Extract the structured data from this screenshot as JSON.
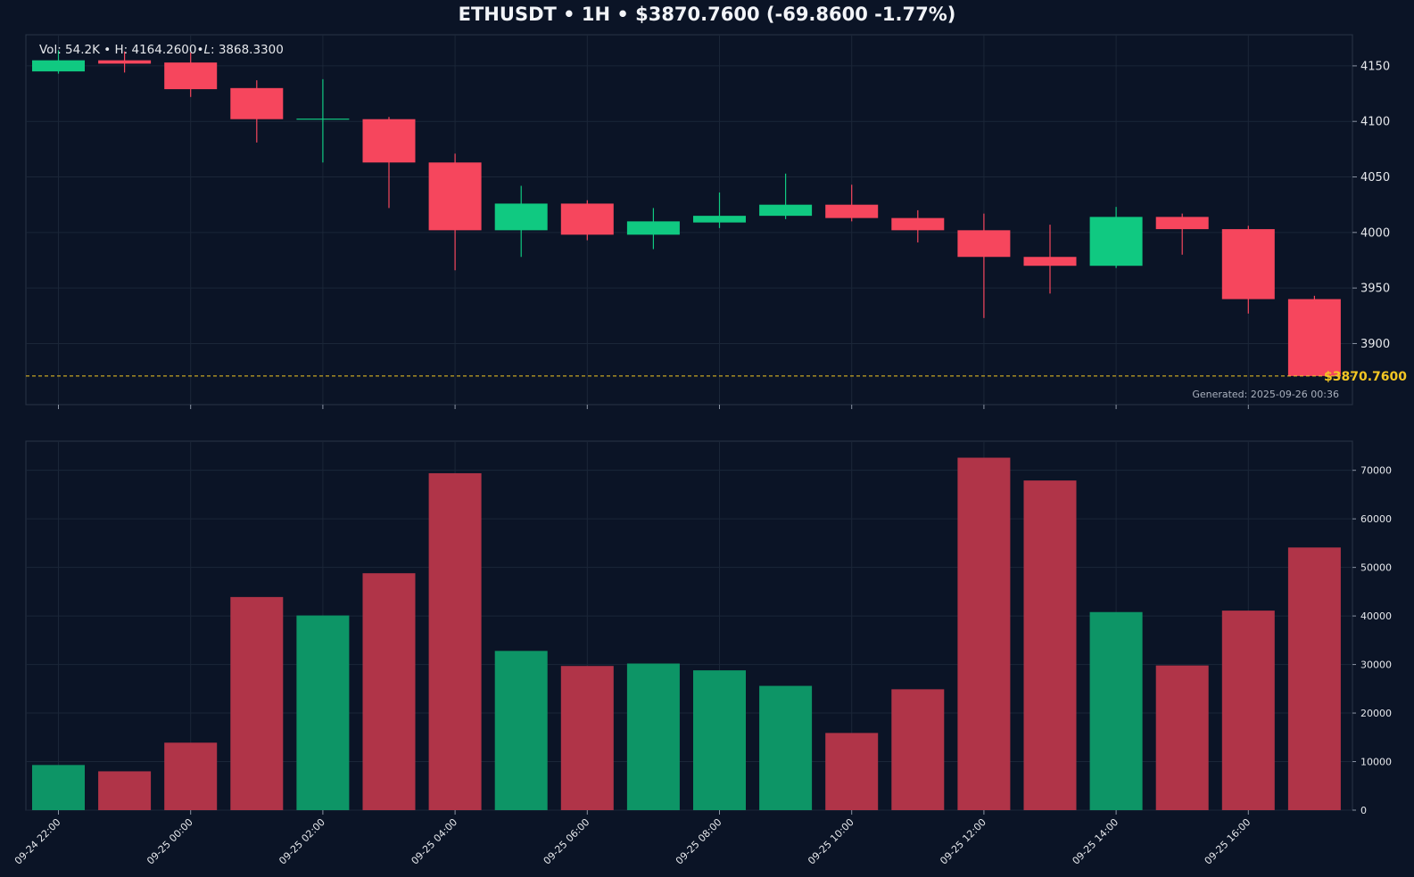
{
  "title": "ETHUSDT • 1H • $3870.7600 (-69.8600 -1.77%)",
  "info_text": "Vol: 54.2K • H: 4164.2600•$L$: 3868.3300",
  "info": {
    "vol": "Vol: 54.2K • H: 4164.2600•",
    "low_symbol": "L",
    "low_value": ": 3868.3300"
  },
  "last_price_label": "$3870.7600",
  "generated_label": "Generated: 2025-09-26 00:36",
  "colors": {
    "background": "#0b1426",
    "up": "#10c981",
    "down": "#f6465d",
    "up_volume": "#0d9566",
    "down_volume": "#b03448",
    "last_price_line": "#f3c623",
    "text": "#e6e8ec",
    "grid": "#1b2638"
  },
  "chart_data": [
    {
      "type": "candlestick",
      "title": "ETHUSDT • 1H • $3870.7600 (-69.8600 -1.77%)",
      "ylim": [
        3845,
        4178
      ],
      "y_ticks": [
        3900,
        3950,
        4000,
        4050,
        4100,
        4150
      ],
      "last_price": 3870.76,
      "grid": true,
      "candles": [
        {
          "time": "09-24 22:00",
          "open": 4145,
          "high": 4164,
          "low": 4143,
          "close": 4155
        },
        {
          "time": "09-24 23:00",
          "open": 4155,
          "high": 4163,
          "low": 4144,
          "close": 4152
        },
        {
          "time": "09-25 00:00",
          "open": 4153,
          "high": 4162,
          "low": 4122,
          "close": 4129
        },
        {
          "time": "09-25 01:00",
          "open": 4130,
          "high": 4137,
          "low": 4081,
          "close": 4102
        },
        {
          "time": "09-25 02:00",
          "open": 4102,
          "high": 4138,
          "low": 4063,
          "close": 4102.5
        },
        {
          "time": "09-25 03:00",
          "open": 4102,
          "high": 4104,
          "low": 4022,
          "close": 4063
        },
        {
          "time": "09-25 04:00",
          "open": 4063,
          "high": 4071,
          "low": 3966,
          "close": 4002
        },
        {
          "time": "09-25 05:00",
          "open": 4002,
          "high": 4042,
          "low": 3978,
          "close": 4026
        },
        {
          "time": "09-25 06:00",
          "open": 4026,
          "high": 4029,
          "low": 3993,
          "close": 3998
        },
        {
          "time": "09-25 07:00",
          "open": 3998,
          "high": 4022,
          "low": 3985,
          "close": 4010
        },
        {
          "time": "09-25 08:00",
          "open": 4009,
          "high": 4036,
          "low": 4004,
          "close": 4015
        },
        {
          "time": "09-25 09:00",
          "open": 4015,
          "high": 4053,
          "low": 4012,
          "close": 4025
        },
        {
          "time": "09-25 10:00",
          "open": 4025,
          "high": 4043,
          "low": 4010,
          "close": 4013
        },
        {
          "time": "09-25 11:00",
          "open": 4013,
          "high": 4020,
          "low": 3991,
          "close": 4002
        },
        {
          "time": "09-25 12:00",
          "open": 4002,
          "high": 4017,
          "low": 3923,
          "close": 3978
        },
        {
          "time": "09-25 13:00",
          "open": 3978,
          "high": 4007,
          "low": 3945,
          "close": 3970
        },
        {
          "time": "09-25 14:00",
          "open": 3970,
          "high": 4023,
          "low": 3968,
          "close": 4014
        },
        {
          "time": "09-25 15:00",
          "open": 4014,
          "high": 4017,
          "low": 3980,
          "close": 4003
        },
        {
          "time": "09-25 16:00",
          "open": 4003,
          "high": 4006,
          "low": 3927,
          "close": 3940
        },
        {
          "time": "09-25 17:00",
          "open": 3940,
          "high": 3943,
          "low": 3870.76,
          "close": 3870.76
        }
      ]
    },
    {
      "type": "bar",
      "ylim": [
        0,
        76000
      ],
      "y_ticks": [
        0,
        10000,
        20000,
        30000,
        40000,
        50000,
        60000,
        70000
      ],
      "grid": true,
      "categories": [
        "09-24 22:00",
        "09-24 23:00",
        "09-25 00:00",
        "09-25 01:00",
        "09-25 02:00",
        "09-25 03:00",
        "09-25 04:00",
        "09-25 05:00",
        "09-25 06:00",
        "09-25 07:00",
        "09-25 08:00",
        "09-25 09:00",
        "09-25 10:00",
        "09-25 11:00",
        "09-25 12:00",
        "09-25 13:00",
        "09-25 14:00",
        "09-25 15:00",
        "09-25 16:00",
        "09-25 17:00"
      ],
      "values": [
        9300,
        8000,
        13900,
        43900,
        40100,
        48800,
        69400,
        32800,
        29700,
        30200,
        28800,
        25600,
        15900,
        24900,
        72600,
        67900,
        40800,
        29800,
        41100,
        54100
      ],
      "directions": [
        "up",
        "down",
        "down",
        "down",
        "up",
        "down",
        "down",
        "up",
        "down",
        "up",
        "up",
        "up",
        "down",
        "down",
        "down",
        "down",
        "up",
        "down",
        "down",
        "down"
      ],
      "x_tick_labels": [
        "09-24 22:00",
        "09-25 00:00",
        "09-25 02:00",
        "09-25 04:00",
        "09-25 06:00",
        "09-25 08:00",
        "09-25 10:00",
        "09-25 12:00",
        "09-25 14:00",
        "09-25 16:00"
      ],
      "x_tick_indices": [
        0,
        2,
        4,
        6,
        8,
        10,
        12,
        14,
        16,
        18
      ]
    }
  ]
}
